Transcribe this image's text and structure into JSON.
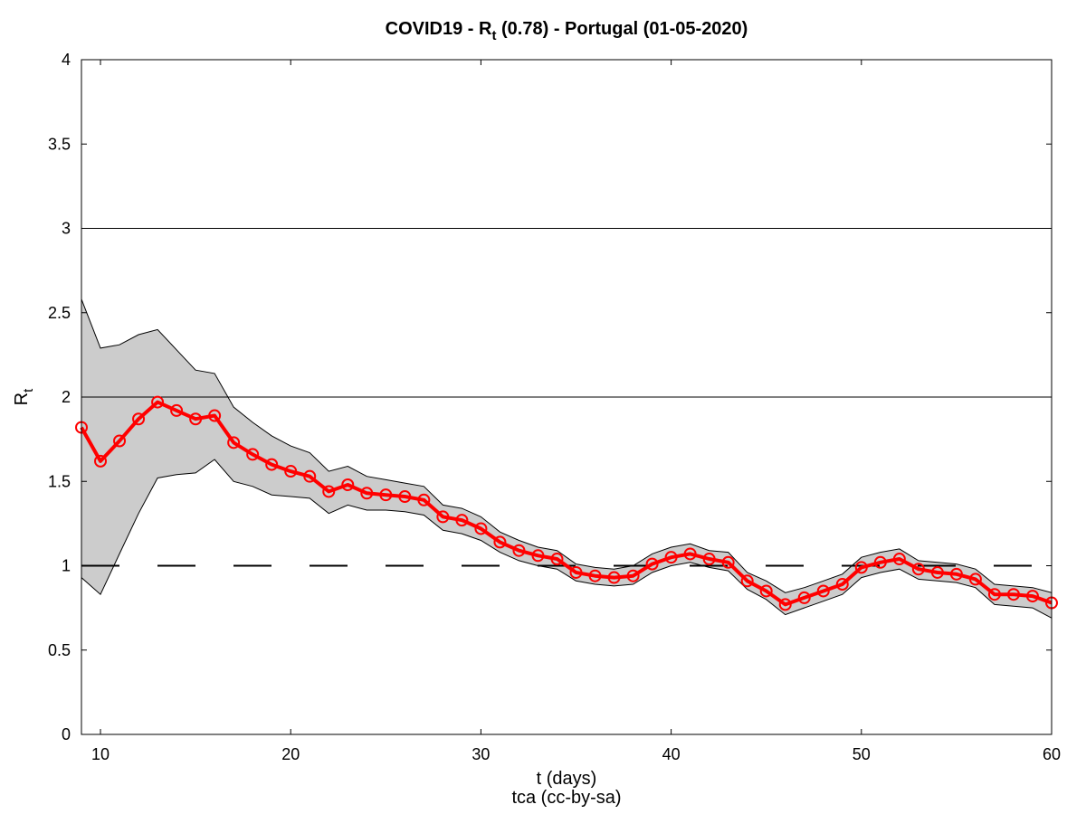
{
  "chart_data": {
    "type": "line",
    "title_main": "COVID19 - R",
    "title_sub": "t",
    "title_rest": " (0.78) - Portugal (01-05-2020)",
    "xlabel": "t (days)",
    "credit": "tca (cc-by-sa)",
    "ylabel_main": "R",
    "ylabel_sub": "t",
    "xlim": [
      9,
      60
    ],
    "ylim": [
      0,
      4
    ],
    "xticks": [
      10,
      20,
      30,
      40,
      50,
      60
    ],
    "yticks": [
      0,
      0.5,
      1,
      1.5,
      2,
      2.5,
      3,
      3.5,
      4
    ],
    "ytick_labels": [
      "0",
      "0.5",
      "1",
      "1.5",
      "2",
      "2.5",
      "3",
      "3.5",
      "4"
    ],
    "reference_lines": [
      {
        "y": 1,
        "style": "dashed"
      },
      {
        "y": 2,
        "style": "solid"
      },
      {
        "y": 3,
        "style": "solid"
      }
    ],
    "x": [
      9,
      10,
      11,
      12,
      13,
      14,
      15,
      16,
      17,
      18,
      19,
      20,
      21,
      22,
      23,
      24,
      25,
      26,
      27,
      28,
      29,
      30,
      31,
      32,
      33,
      34,
      35,
      36,
      37,
      38,
      39,
      40,
      41,
      42,
      43,
      44,
      45,
      46,
      47,
      48,
      49,
      50,
      51,
      52,
      53,
      54,
      55,
      56,
      57,
      58,
      59,
      60
    ],
    "series": [
      {
        "values": [
          1.82,
          1.62,
          1.74,
          1.87,
          1.97,
          1.92,
          1.87,
          1.89,
          1.73,
          1.66,
          1.6,
          1.56,
          1.53,
          1.44,
          1.48,
          1.43,
          1.42,
          1.41,
          1.39,
          1.29,
          1.27,
          1.22,
          1.14,
          1.09,
          1.06,
          1.04,
          0.96,
          0.94,
          0.93,
          0.94,
          1.01,
          1.05,
          1.07,
          1.04,
          1.02,
          0.91,
          0.85,
          0.77,
          0.81,
          0.85,
          0.89,
          0.99,
          1.02,
          1.04,
          0.98,
          0.96,
          0.95,
          0.92,
          0.83,
          0.83,
          0.82,
          0.78
        ],
        "color": "#ff0000",
        "marker": "circle"
      }
    ],
    "band": {
      "upper": [
        2.58,
        2.29,
        2.31,
        2.37,
        2.4,
        2.28,
        2.16,
        2.14,
        1.94,
        1.85,
        1.77,
        1.71,
        1.67,
        1.56,
        1.59,
        1.53,
        1.51,
        1.49,
        1.47,
        1.36,
        1.34,
        1.29,
        1.2,
        1.15,
        1.11,
        1.09,
        1.01,
        0.99,
        0.98,
        1.0,
        1.07,
        1.11,
        1.13,
        1.09,
        1.08,
        0.96,
        0.91,
        0.84,
        0.87,
        0.91,
        0.95,
        1.05,
        1.08,
        1.1,
        1.03,
        1.02,
        1.01,
        0.98,
        0.89,
        0.88,
        0.87,
        0.84
      ],
      "lower": [
        0.93,
        0.83,
        1.07,
        1.31,
        1.52,
        1.54,
        1.55,
        1.63,
        1.5,
        1.47,
        1.42,
        1.41,
        1.4,
        1.31,
        1.36,
        1.33,
        1.33,
        1.32,
        1.3,
        1.21,
        1.19,
        1.15,
        1.08,
        1.03,
        1.0,
        0.98,
        0.91,
        0.89,
        0.88,
        0.89,
        0.96,
        1.0,
        1.02,
        0.99,
        0.97,
        0.86,
        0.8,
        0.71,
        0.75,
        0.79,
        0.83,
        0.93,
        0.96,
        0.98,
        0.92,
        0.91,
        0.9,
        0.87,
        0.77,
        0.76,
        0.75,
        0.69
      ],
      "color": "#cccccc"
    },
    "grid": false
  }
}
